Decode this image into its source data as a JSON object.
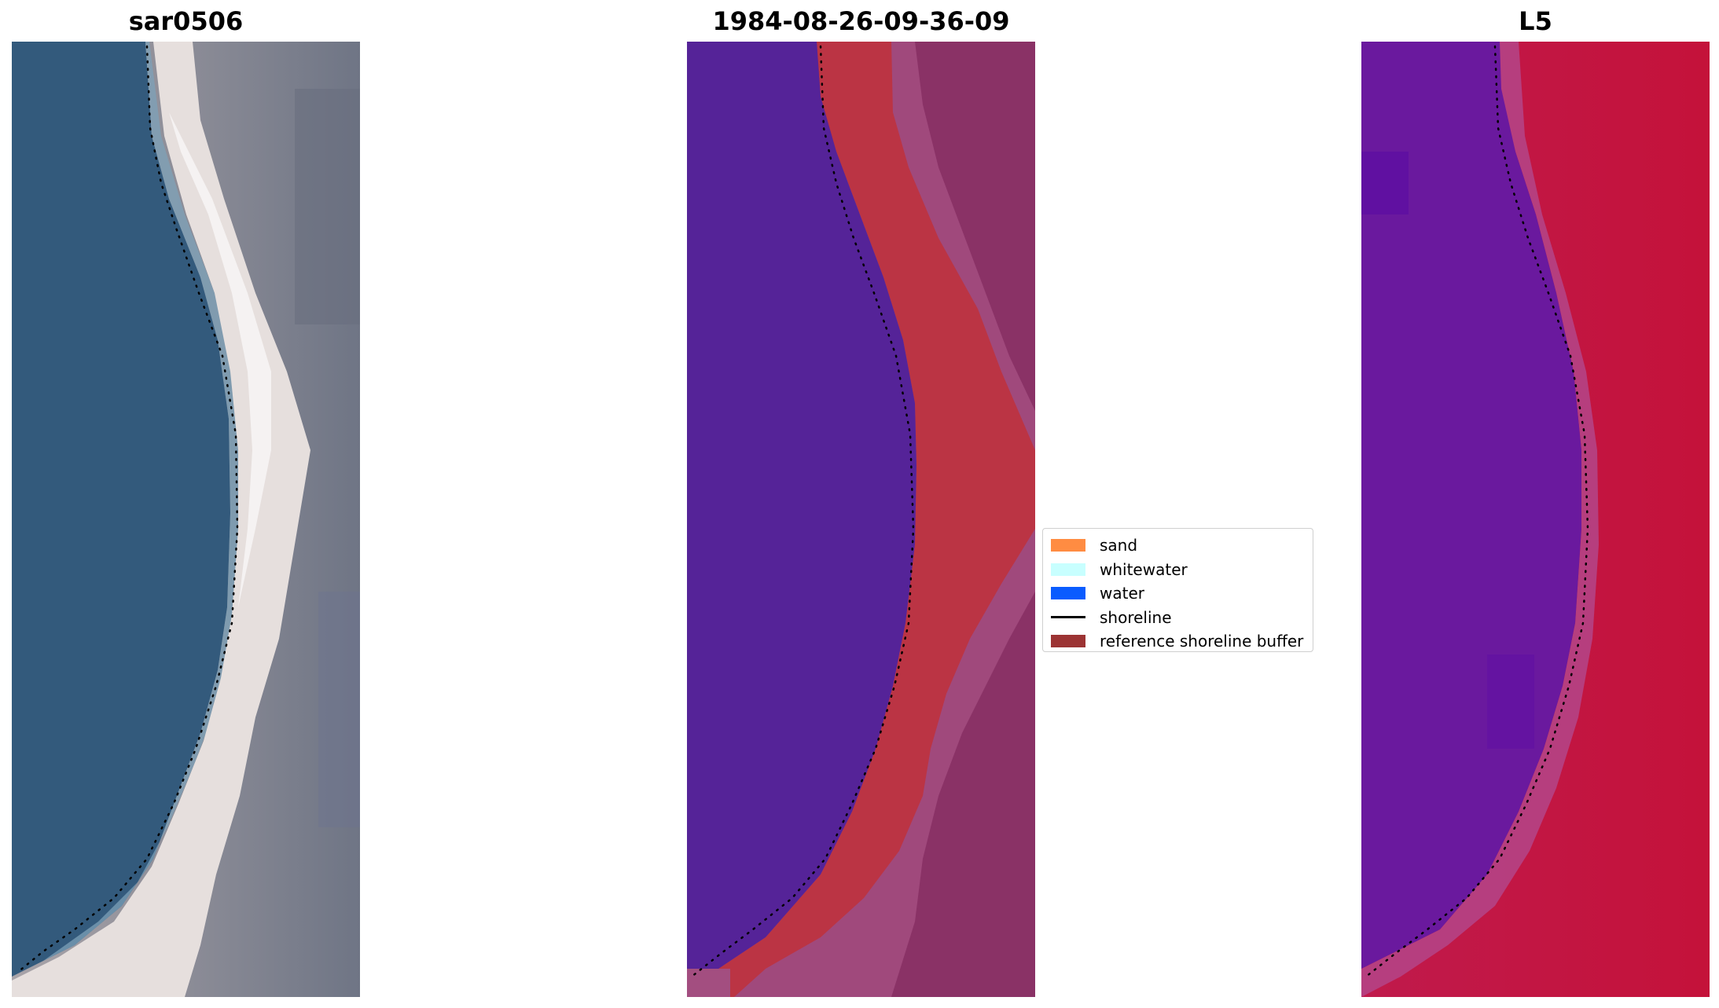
{
  "panels": {
    "left": {
      "title": "sar0506"
    },
    "middle": {
      "title": "1984-08-26-09-36-09"
    },
    "right": {
      "title": "L5"
    }
  },
  "legend": {
    "items": [
      {
        "label": "sand",
        "color": "#ff8c42",
        "kind": "patch"
      },
      {
        "label": "whitewater",
        "color": "#c8ffff",
        "kind": "patch"
      },
      {
        "label": "water",
        "color": "#0a5cff",
        "kind": "patch"
      },
      {
        "label": "shoreline",
        "color": "#000000",
        "kind": "line"
      },
      {
        "label": "reference shoreline buffer",
        "color": "#9c3333",
        "kind": "patch"
      }
    ]
  },
  "colors": {
    "water_rgb": "#305577",
    "sand_rgb": "#ece3de",
    "land_rgb": "#757785",
    "class_water": "#552398",
    "class_buffer": "#bb3444",
    "class_land": "#8a3266",
    "index_water": "#6a199e",
    "index_land": "#c4143e"
  }
}
